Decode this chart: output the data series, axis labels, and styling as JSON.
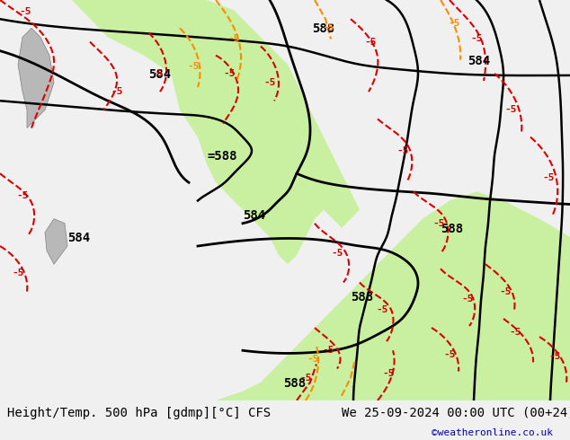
{
  "title_left": "Height/Temp. 500 hPa [gdmp][°C] CFS",
  "title_right": "We 25-09-2024 00:00 UTC (00+24)",
  "credit": "©weatheronline.co.uk",
  "bg_color": "#e8e8e8",
  "map_bg_color": "#d8d8d8",
  "green_fill_color": "#c8f0a0",
  "font_family": "monospace",
  "bottom_bar_color": "#f0f0f0",
  "label_color_black": "#000000",
  "label_color_red": "#cc0000",
  "label_color_orange": "#ff8c00",
  "label_color_blue": "#0000cc",
  "contour_black": "#000000",
  "contour_red_dashed": "#dd0000",
  "contour_orange_dashed": "#ff8c00"
}
